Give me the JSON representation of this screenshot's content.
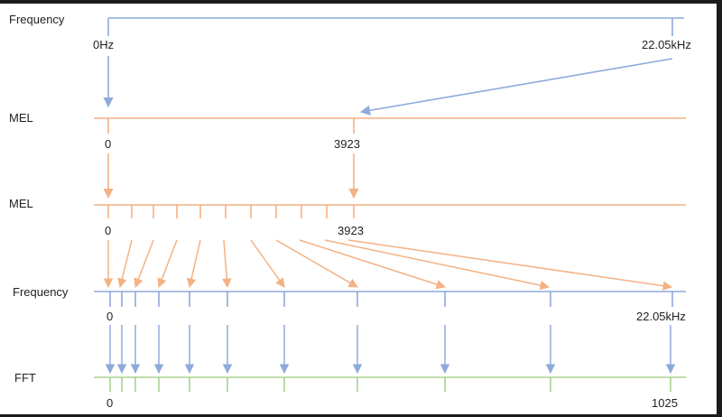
{
  "colors": {
    "frequency": "#8eaadb",
    "mel": "#f4b183",
    "fft": "#a9d18e",
    "text": "#1f1f1f",
    "frame": "#1b1b1b"
  },
  "row_labels": {
    "frequency_top": "Frequency",
    "mel_1": "MEL",
    "mel_2": "MEL",
    "frequency_bottom": "Frequency",
    "fft": "FFT"
  },
  "values": {
    "freq_top_start": "0Hz",
    "freq_top_end": "22.05kHz",
    "mel1_start": "0",
    "mel1_end": "3923",
    "mel2_start": "0",
    "mel2_end": "3923",
    "freq_bottom_start": "0",
    "freq_bottom_end": "22.05kHz",
    "fft_start": "0",
    "fft_end": "1025"
  }
}
